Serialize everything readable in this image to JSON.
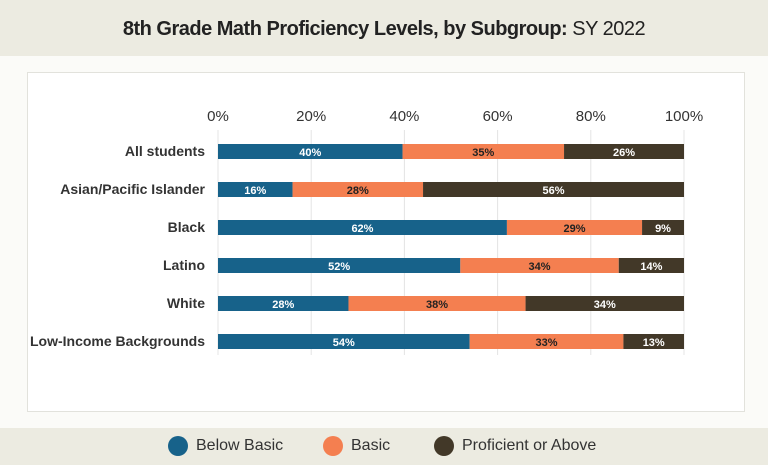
{
  "header": {
    "title_bold": "8th Grade Math Proficiency Levels, by Subgroup:",
    "title_light": "SY 2022"
  },
  "chart_data": {
    "type": "bar",
    "orientation": "horizontal",
    "stacked": true,
    "title": "8th Grade Math Proficiency Levels, by Subgroup: SY 2022",
    "categories": [
      "All students",
      "Asian/Pacific Islander",
      "Black",
      "Latino",
      "White",
      "Low-Income Backgrounds"
    ],
    "series": [
      {
        "name": "Below Basic",
        "color": "#17628a",
        "values": [
          40,
          16,
          62,
          52,
          28,
          54
        ]
      },
      {
        "name": "Basic",
        "color": "#f47f50",
        "values": [
          35,
          28,
          29,
          34,
          38,
          33
        ]
      },
      {
        "name": "Proficient or Above",
        "color": "#423828",
        "values": [
          26,
          56,
          9,
          14,
          34,
          13
        ]
      }
    ],
    "xlim": [
      0,
      100
    ],
    "xticks": [
      "0%",
      "20%",
      "40%",
      "60%",
      "80%",
      "100%"
    ],
    "grid": true,
    "legend_position": "bottom"
  }
}
